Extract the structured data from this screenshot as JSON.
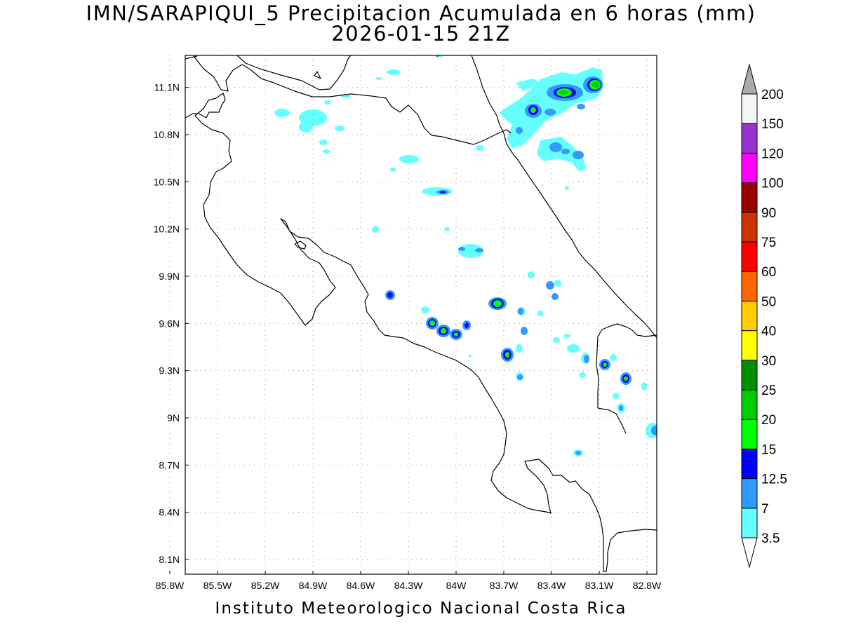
{
  "title": {
    "line1": "IMN/SARAPIQUI_5 Precipitacion Acumulada en 6 horas (mm)",
    "line2": "2026-01-15 21Z"
  },
  "credit": "Instituto Meteorologico Nacional Costa Rica",
  "map": {
    "lon_range": [
      -86.1,
      -82.6
    ],
    "lat_range": [
      8.0,
      11.3
    ],
    "lon_ticks": [
      {
        "value": -85.8,
        "label": "85.8W"
      },
      {
        "value": -85.5,
        "label": "85.5W"
      },
      {
        "value": -85.2,
        "label": "85.2W"
      },
      {
        "value": -84.9,
        "label": "84.9W"
      },
      {
        "value": -84.6,
        "label": "84.6W"
      },
      {
        "value": -84.3,
        "label": "84.3W"
      },
      {
        "value": -84.0,
        "label": "84W"
      },
      {
        "value": -83.7,
        "label": "83.7W"
      },
      {
        "value": -83.4,
        "label": "83.4W"
      },
      {
        "value": -83.1,
        "label": "83.1W"
      },
      {
        "value": -82.8,
        "label": "82.8W"
      }
    ],
    "lat_ticks": [
      {
        "value": 11.1,
        "label": "11.1N"
      },
      {
        "value": 10.8,
        "label": "10.8N"
      },
      {
        "value": 10.5,
        "label": "10.5N"
      },
      {
        "value": 10.2,
        "label": "10.2N"
      },
      {
        "value": 9.9,
        "label": "9.9N"
      },
      {
        "value": 9.6,
        "label": "9.6N"
      },
      {
        "value": 9.3,
        "label": "9.3N"
      },
      {
        "value": 9.0,
        "label": "9N"
      },
      {
        "value": 8.7,
        "label": "8.7N"
      },
      {
        "value": 8.4,
        "label": "8.4N"
      },
      {
        "value": 8.1,
        "label": "8.1N"
      }
    ],
    "grid": "dotted"
  },
  "legend": {
    "unit": "mm",
    "levels": [
      {
        "label": "3.5",
        "color": "#66ffff"
      },
      {
        "label": "7",
        "color": "#3399ff"
      },
      {
        "label": "12.5",
        "color": "#0000ff"
      },
      {
        "label": "15",
        "color": "#00ff00"
      },
      {
        "label": "20",
        "color": "#00cc00"
      },
      {
        "label": "25",
        "color": "#008f00"
      },
      {
        "label": "30",
        "color": "#ffff00"
      },
      {
        "label": "40",
        "color": "#ffcc00"
      },
      {
        "label": "50",
        "color": "#ff6600"
      },
      {
        "label": "60",
        "color": "#ff0000"
      },
      {
        "label": "75",
        "color": "#cc3300"
      },
      {
        "label": "90",
        "color": "#990000"
      },
      {
        "label": "100",
        "color": "#ff00ff"
      },
      {
        "label": "120",
        "color": "#9933cc"
      },
      {
        "label": "150",
        "color": "#f5f5f5"
      },
      {
        "label": "200",
        "color": "#aaaaaa"
      }
    ]
  },
  "precip_cells": [
    {
      "lon": -82.92,
      "lat": 11.11,
      "mm": 20
    },
    {
      "lon": -83.17,
      "lat": 11.06,
      "mm": 20
    },
    {
      "lon": -83.41,
      "lat": 10.95,
      "mm": 15
    },
    {
      "lon": -83.27,
      "lat": 10.94,
      "mm": 7
    },
    {
      "lon": -83.55,
      "lat": 10.85,
      "mm": 3.5
    },
    {
      "lon": -83.22,
      "lat": 10.74,
      "mm": 7
    },
    {
      "lon": -83.06,
      "lat": 10.69,
      "mm": 7
    },
    {
      "lon": -84.8,
      "lat": 10.96,
      "mm": 3.5
    },
    {
      "lon": -85.1,
      "lat": 10.92,
      "mm": 3.5
    },
    {
      "lon": -84.32,
      "lat": 10.64,
      "mm": 3.5
    },
    {
      "lon": -84.11,
      "lat": 10.44,
      "mm": 7
    },
    {
      "lon": -84.57,
      "lat": 10.19,
      "mm": 3.5
    },
    {
      "lon": -83.9,
      "lat": 10.07,
      "mm": 7
    },
    {
      "lon": -84.46,
      "lat": 9.77,
      "mm": 12.5
    },
    {
      "lon": -83.71,
      "lat": 9.73,
      "mm": 15
    },
    {
      "lon": -84.15,
      "lat": 9.61,
      "mm": 15
    },
    {
      "lon": -84.08,
      "lat": 9.55,
      "mm": 15
    },
    {
      "lon": -84.0,
      "lat": 9.52,
      "mm": 15
    },
    {
      "lon": -83.93,
      "lat": 9.58,
      "mm": 12.5
    },
    {
      "lon": -83.6,
      "lat": 9.39,
      "mm": 15
    },
    {
      "lon": -83.28,
      "lat": 9.84,
      "mm": 7
    },
    {
      "lon": -82.91,
      "lat": 9.34,
      "mm": 15
    },
    {
      "lon": -82.74,
      "lat": 9.25,
      "mm": 15
    },
    {
      "lon": -82.62,
      "lat": 8.89,
      "mm": 7
    },
    {
      "lon": -83.09,
      "lat": 8.77,
      "mm": 7
    }
  ]
}
